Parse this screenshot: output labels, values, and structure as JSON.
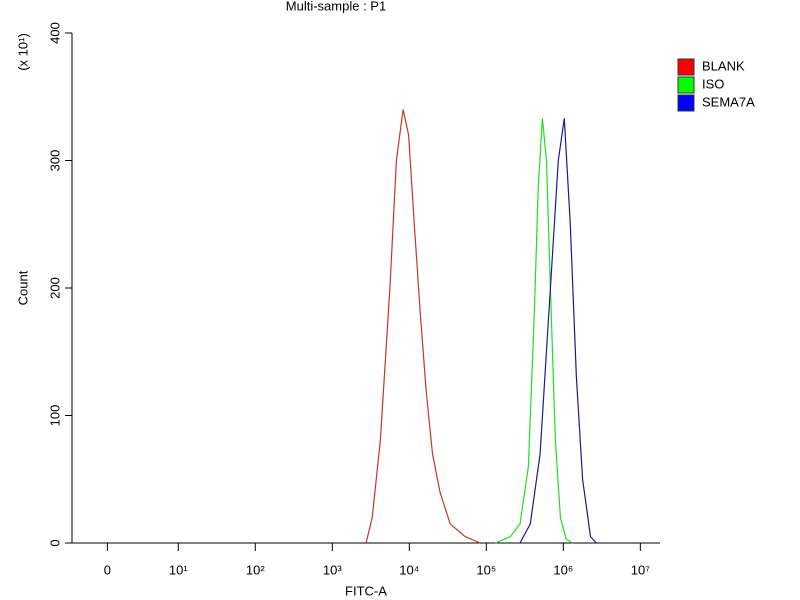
{
  "chart_data": {
    "type": "line",
    "title": "Multi-sample : P1",
    "x_label": "FITC-A",
    "y_label": "Count",
    "y_multiplier": "(x 10¹)",
    "xscale": "biexponential",
    "xlim": [
      -5,
      18000000
    ],
    "xticks": [
      0,
      {
        "value": 10,
        "label": "10¹"
      },
      {
        "value": 100,
        "label": "10²"
      },
      {
        "value": 1000,
        "label": "10³"
      },
      {
        "value": 10000,
        "label": "10⁴"
      },
      {
        "value": 100000,
        "label": "10⁵"
      },
      {
        "value": 1000000,
        "label": "10⁶"
      },
      {
        "value": 10000000,
        "label": "10⁷"
      }
    ],
    "ylim": [
      0,
      400
    ],
    "yticks": [
      0,
      100,
      200,
      300,
      400
    ],
    "legend": "right",
    "series": [
      {
        "name": "BLANK",
        "color": "#c0392b",
        "legend_color": "#ff0000",
        "x": [
          2750,
          3300,
          4200,
          5600,
          6800,
          8300,
          9800,
          11600,
          13900,
          16500,
          20000,
          25000,
          34000,
          53000,
          83000
        ],
        "values": [
          0,
          20,
          80,
          200,
          300,
          340,
          320,
          250,
          180,
          120,
          70,
          40,
          15,
          5,
          0
        ]
      },
      {
        "name": "ISO",
        "color": "#22dd22",
        "legend_color": "#00ff00",
        "x": [
          132000,
          205000,
          274000,
          352000,
          420000,
          473000,
          535000,
          605000,
          680000,
          790000,
          915000,
          1090000,
          1310000
        ],
        "values": [
          0,
          5,
          15,
          60,
          180,
          280,
          333,
          300,
          200,
          80,
          20,
          3,
          0
        ]
      },
      {
        "name": "SEMA7A",
        "color": "#1a1a8c",
        "legend_color": "#0000ff",
        "x": [
          274000,
          372000,
          500000,
          680000,
          860000,
          1030000,
          1230000,
          1480000,
          1780000,
          2250000,
          2680000
        ],
        "values": [
          0,
          15,
          70,
          200,
          300,
          333,
          250,
          130,
          50,
          5,
          0
        ]
      }
    ]
  }
}
